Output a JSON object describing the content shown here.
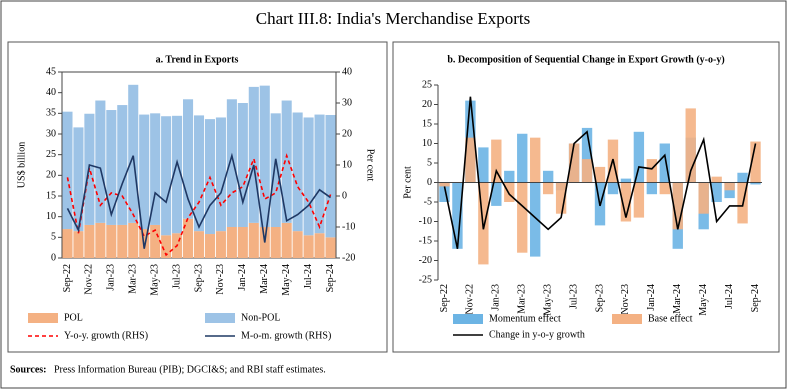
{
  "title": "Chart III.8: India's Merchandise Exports",
  "source": {
    "label": "Sources:",
    "text": "Press Information Bureau (PIB); DGCI&S; and RBI staff estimates."
  },
  "chart_data": [
    {
      "type": "bar",
      "stacked": true,
      "title": "a. Trend in Exports",
      "y_label": "US$ billion",
      "y2_label": "Per cent",
      "categories": [
        "Sep-22",
        null,
        "Nov-22",
        null,
        "Jan-23",
        null,
        "Mar-23",
        null,
        "May-23",
        null,
        "Jul-23",
        null,
        "Sep-23",
        null,
        "Nov-23",
        null,
        "Jan-24",
        null,
        "Mar-24",
        null,
        "May-24",
        null,
        "Jul-24",
        null,
        "Sep-24"
      ],
      "ylim": [
        0,
        45
      ],
      "yticks": [
        0,
        5,
        10,
        15,
        20,
        25,
        30,
        35,
        40,
        45
      ],
      "y2lim": [
        -20,
        40
      ],
      "y2ticks": [
        -20,
        -10,
        0,
        10,
        20,
        30,
        40
      ],
      "series": [
        {
          "name": "POL",
          "type": "bar",
          "color": "#f4b183",
          "values": [
            7.0,
            6.5,
            8.0,
            8.5,
            8.0,
            8.0,
            8.5,
            7.0,
            8.0,
            5.5,
            6.0,
            9.5,
            6.5,
            5.8,
            6.5,
            7.5,
            7.5,
            8.5,
            7.5,
            7.5,
            8.5,
            6.5,
            5.5,
            6.0,
            5.0
          ]
        },
        {
          "name": "Non-POL",
          "type": "bar",
          "color": "#9dc3e6",
          "values": [
            28.4,
            25.1,
            26.9,
            29.6,
            27.8,
            29.0,
            33.4,
            27.7,
            27.0,
            28.8,
            28.4,
            28.9,
            28.0,
            27.8,
            27.5,
            30.9,
            30.0,
            32.9,
            34.2,
            27.5,
            29.6,
            28.7,
            28.5,
            28.7,
            29.6
          ]
        },
        {
          "name": "Y-o-y. growth (RHS)",
          "type": "line",
          "axis": "y2",
          "dash": true,
          "color": "#ff0000",
          "values": [
            6,
            -12,
            9,
            -3,
            1,
            0,
            -6,
            -13,
            -11,
            -19,
            -16,
            -7,
            -2,
            6,
            -3,
            1,
            3,
            12,
            -1,
            1,
            13,
            3,
            -2,
            -10,
            0.5
          ]
        },
        {
          "name": "M-o-m. growth (RHS)",
          "type": "line",
          "axis": "y2",
          "color": "#1f3864",
          "values": [
            -4,
            -11,
            10,
            9,
            -6,
            4,
            13,
            -17,
            1,
            -2,
            11,
            -1,
            -10,
            -3,
            1,
            13,
            -2,
            10,
            -15,
            12,
            -8,
            -6,
            -3,
            2,
            -0.5
          ]
        }
      ]
    },
    {
      "type": "bar",
      "stacked": false,
      "title": "b. Decomposition of Sequential Change in Export Growth (y-o-y)",
      "y_label": "Per cent",
      "categories": [
        "Sep-22",
        null,
        "Nov-22",
        null,
        "Jan-23",
        null,
        "Mar-23",
        null,
        "May-23",
        null,
        "Jul-23",
        null,
        "Sep-23",
        null,
        "Nov-23",
        null,
        "Jan-24",
        null,
        "Mar-24",
        null,
        "May-24",
        null,
        "Jul-24",
        null,
        "Sep-24"
      ],
      "ylim": [
        -25,
        25
      ],
      "yticks": [
        -25,
        -20,
        -15,
        -10,
        -5,
        0,
        5,
        10,
        15,
        20,
        25
      ],
      "series": [
        {
          "name": "Momentum effect",
          "type": "bar",
          "color": "#6cb4e4",
          "values": [
            -5,
            -17,
            21,
            9,
            -6,
            3,
            12.5,
            -19,
            3,
            -2,
            10,
            14,
            -11,
            -3,
            1,
            13,
            -3,
            10,
            -17,
            11.5,
            -12,
            -5,
            -4,
            2.5,
            -0.5
          ]
        },
        {
          "name": "Base effect",
          "type": "bar",
          "color": "#f4b183",
          "values": [
            -1,
            0,
            11.5,
            -21,
            11,
            -5,
            -18,
            11.5,
            -3,
            -8,
            10,
            6,
            4,
            11,
            -10,
            -9,
            6,
            -3,
            -12,
            19,
            -8,
            1.5,
            -2,
            -10.5,
            10.5
          ]
        },
        {
          "name": "Change in y-o-y growth",
          "type": "line",
          "color": "#000000",
          "values": [
            -1,
            -17,
            22,
            -12,
            3,
            -3,
            -6,
            -9,
            -12,
            -9,
            10,
            13,
            -6,
            6,
            -9,
            4,
            3.5,
            7,
            -12,
            3,
            11,
            -10,
            -6,
            -6,
            10
          ]
        }
      ]
    }
  ]
}
